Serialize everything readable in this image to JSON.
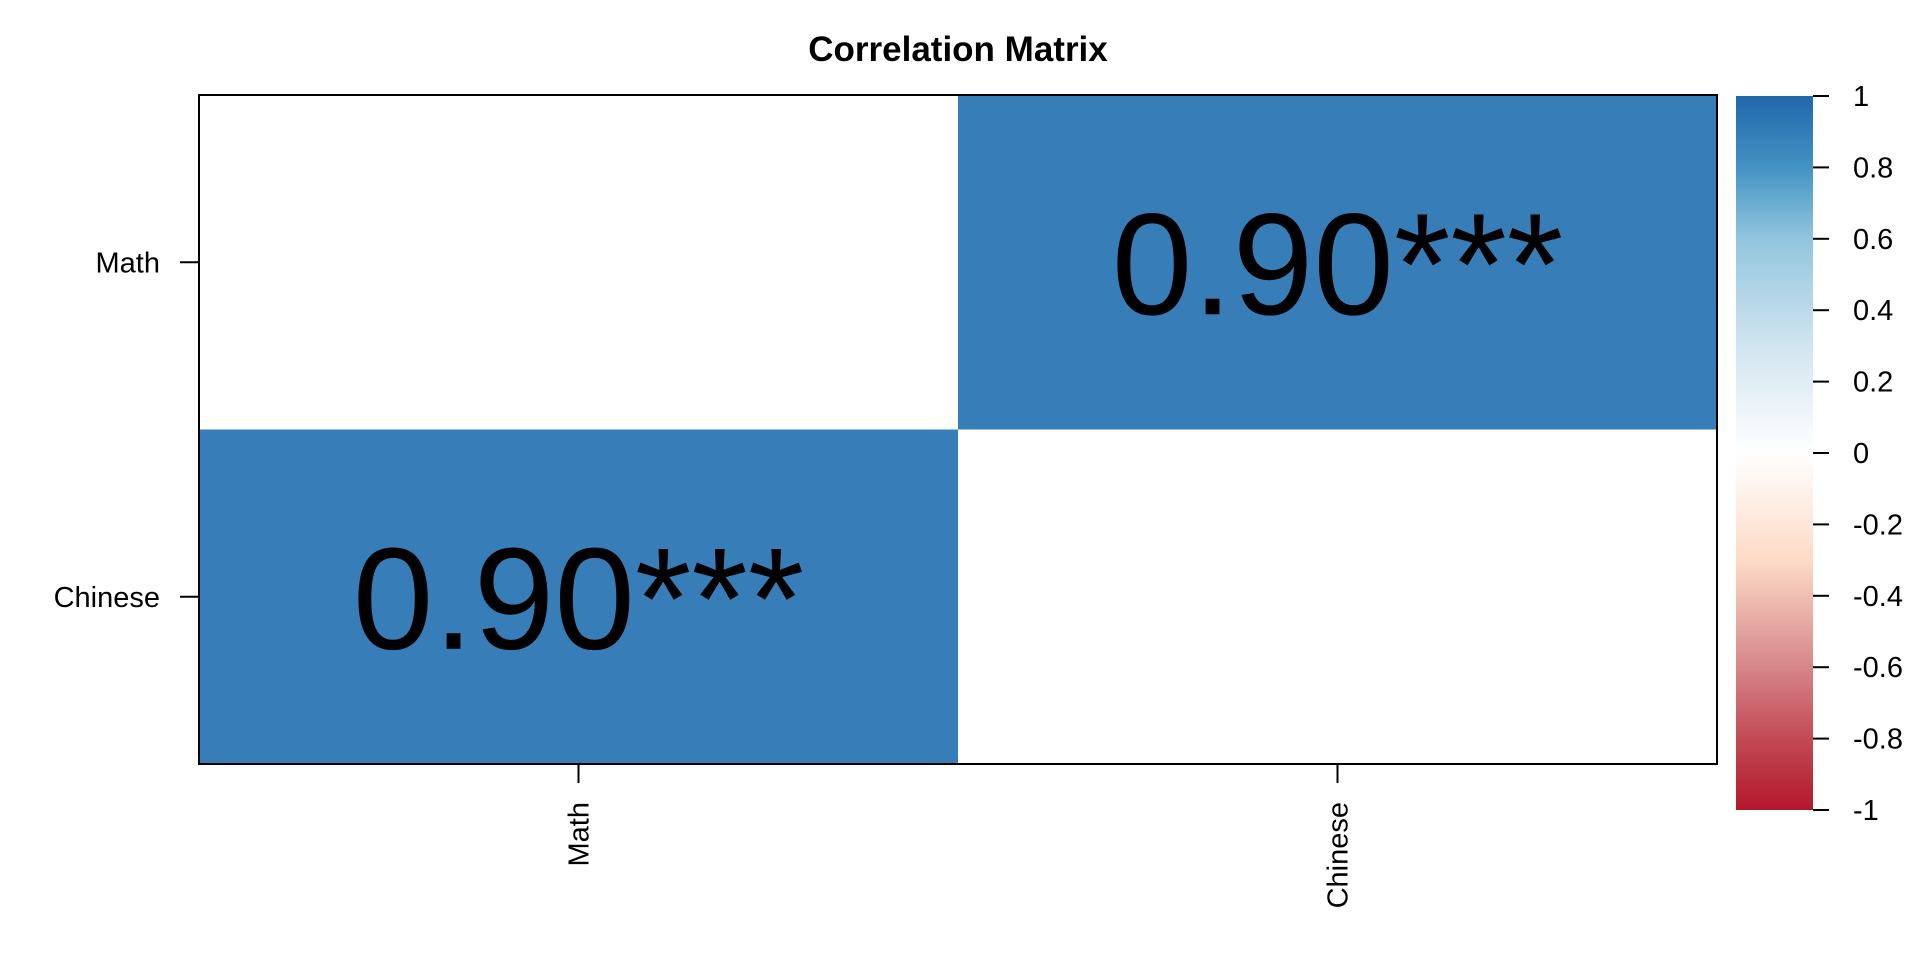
{
  "chart_data": {
    "type": "heatmap",
    "title": "Correlation Matrix",
    "rows": [
      "Math",
      "Chinese"
    ],
    "columns": [
      "Math",
      "Chinese"
    ],
    "values": [
      [
        null,
        0.9
      ],
      [
        0.9,
        null
      ]
    ],
    "labels": [
      [
        "",
        "0.90***"
      ],
      [
        "0.90***",
        ""
      ]
    ],
    "color_scale": {
      "range": [
        -1,
        1
      ],
      "ticks": [
        "1",
        "0.8",
        "0.6",
        "0.4",
        "0.2",
        "0",
        "-0.2",
        "-0.4",
        "-0.6",
        "-0.8",
        "-1"
      ],
      "tick_values": [
        1,
        0.8,
        0.6,
        0.4,
        0.2,
        0,
        -0.2,
        -0.4,
        -0.6,
        -0.8,
        -1
      ],
      "colors": {
        "high": "#2166ac",
        "mid": "#ffffff",
        "low": "#b2182b",
        "cell_09": "#377eb8"
      },
      "legend_placement": "right"
    }
  }
}
